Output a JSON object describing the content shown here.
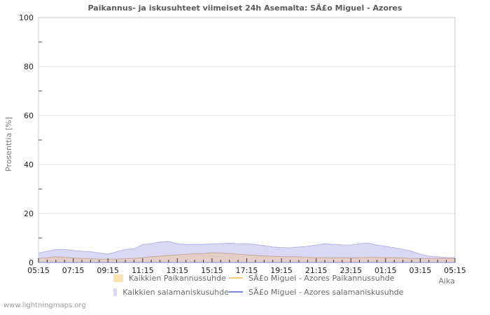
{
  "footer": {
    "watermark": "www.lightningmaps.org"
  },
  "chart_data": {
    "type": "area",
    "title": "Paikannus- ja iskusuhteet viimeiset 24h Asemalta: SÃ£o Miguel - Azores",
    "xlabel": "Aika",
    "ylabel": "Prosenttia  [%]",
    "ylim": [
      0,
      100
    ],
    "y_ticks": [
      0,
      20,
      40,
      60,
      80,
      100
    ],
    "y_minor_ticks": [
      10,
      30,
      50,
      70,
      90
    ],
    "gridlines_at": [
      20,
      40,
      60,
      80
    ],
    "grid": "horizontal-only",
    "legend_position": "bottom",
    "x_ticklabels": [
      "05:15",
      "07:15",
      "09:15",
      "11:15",
      "13:15",
      "15:15",
      "17:15",
      "19:15",
      "21:15",
      "23:15",
      "01:15",
      "03:15",
      "05:15"
    ],
    "x": [
      "05:15",
      "05:45",
      "06:15",
      "06:45",
      "07:15",
      "07:45",
      "08:15",
      "08:45",
      "09:15",
      "09:45",
      "10:15",
      "10:45",
      "11:15",
      "11:45",
      "12:15",
      "12:45",
      "13:15",
      "13:45",
      "14:15",
      "14:45",
      "15:15",
      "15:45",
      "16:15",
      "16:45",
      "17:15",
      "17:45",
      "18:15",
      "18:45",
      "19:15",
      "19:45",
      "20:15",
      "20:45",
      "21:15",
      "21:45",
      "22:15",
      "22:45",
      "23:15",
      "23:45",
      "00:15",
      "00:45",
      "01:15",
      "01:45",
      "02:15",
      "02:45",
      "03:15",
      "03:45",
      "04:15",
      "04:45",
      "05:15"
    ],
    "series": [
      {
        "name": "Kaikkien Paikannussuhde",
        "kind": "area",
        "color": "#fbe2b3",
        "chart_fill": "#e3cec6",
        "stroke": "#c9a89e",
        "values": [
          1.7,
          2.0,
          2.3,
          2.1,
          1.9,
          1.7,
          1.6,
          1.4,
          1.3,
          1.4,
          1.6,
          1.7,
          2.0,
          2.3,
          2.6,
          2.9,
          3.1,
          3.3,
          3.6,
          3.7,
          4.0,
          3.9,
          3.7,
          3.4,
          3.1,
          2.9,
          2.7,
          2.6,
          2.4,
          2.3,
          2.3,
          2.1,
          2.0,
          2.0,
          1.9,
          1.9,
          1.9,
          2.0,
          2.1,
          2.1,
          2.0,
          2.0,
          1.9,
          1.7,
          1.6,
          1.6,
          1.7,
          1.7,
          1.7
        ]
      },
      {
        "name": "Kaikkien salamaniskusuhde",
        "kind": "area",
        "color": "#d9d9f6",
        "chart_fill": "#d9d9f6",
        "stroke": "#b5b5e2",
        "values": [
          3.8,
          4.6,
          5.3,
          5.3,
          4.9,
          4.6,
          4.4,
          3.9,
          3.4,
          4.4,
          5.3,
          5.6,
          7.3,
          7.7,
          8.4,
          8.6,
          7.7,
          7.3,
          7.4,
          7.4,
          7.6,
          7.7,
          7.9,
          7.6,
          7.7,
          7.3,
          6.9,
          6.3,
          6.1,
          6.0,
          6.3,
          6.6,
          7.1,
          7.7,
          7.4,
          7.1,
          7.1,
          7.7,
          8.0,
          7.1,
          6.6,
          6.0,
          5.4,
          4.6,
          3.4,
          2.6,
          2.3,
          2.0,
          2.0
        ]
      },
      {
        "name": "SÃ£o Miguel - Azores Paikannussuhde",
        "kind": "line",
        "color": "#f6cd79",
        "values": [
          0,
          0,
          0,
          0,
          0,
          0,
          0,
          0,
          0,
          0,
          0,
          0,
          0,
          0,
          0,
          0,
          0,
          0,
          0,
          0,
          0,
          0,
          0,
          0,
          0,
          0,
          0,
          0,
          0,
          0,
          0,
          0,
          0,
          0,
          0,
          0,
          0,
          0,
          0,
          0,
          0,
          0,
          0,
          0,
          0,
          0,
          0,
          0,
          0
        ]
      },
      {
        "name": "SÃ£o Miguel - Azores salamaniskusuhde",
        "kind": "line",
        "color": "#8081dd",
        "values": [
          0,
          0,
          0,
          0,
          0,
          0,
          0,
          0,
          0,
          0,
          0,
          0,
          0,
          0,
          0,
          0,
          0,
          0,
          0,
          0,
          0,
          0,
          0,
          0,
          0,
          0,
          0,
          0,
          0,
          0,
          0,
          0,
          0,
          0,
          0,
          0,
          0,
          0,
          0,
          0,
          0,
          0,
          0,
          0,
          0,
          0,
          0,
          0,
          0
        ]
      }
    ]
  }
}
